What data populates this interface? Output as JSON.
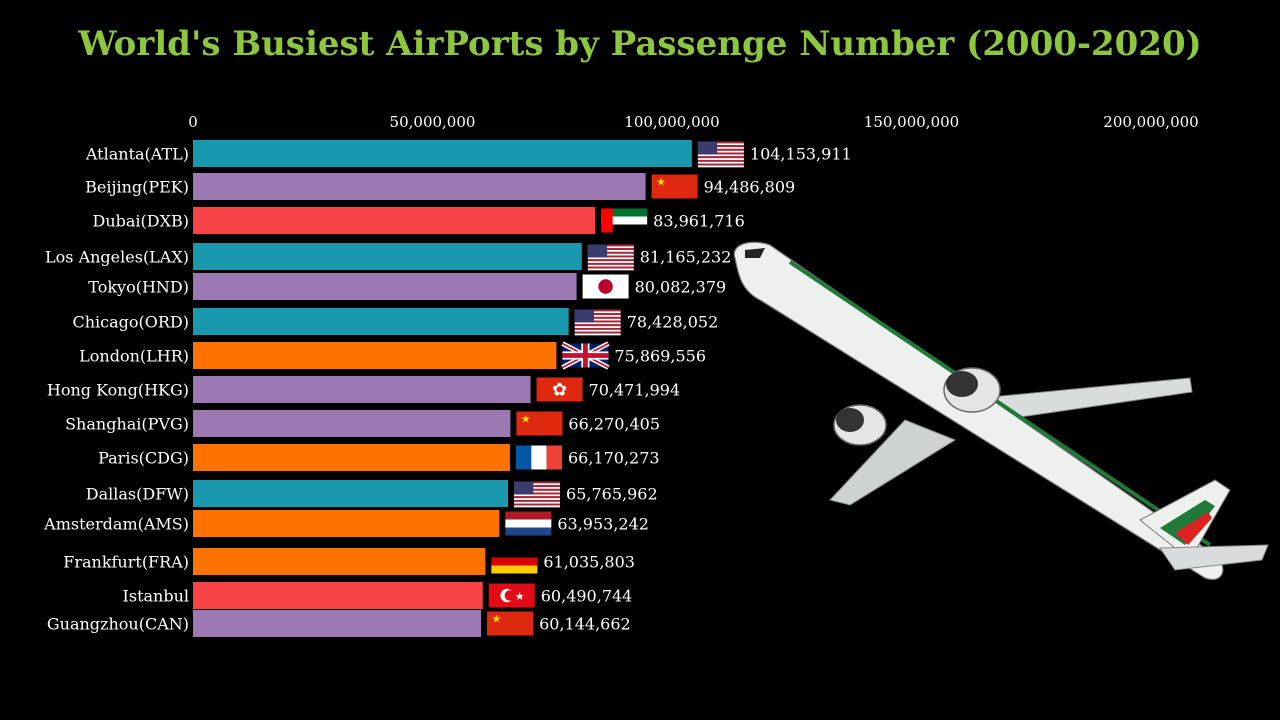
{
  "chart_data": {
    "type": "bar",
    "orientation": "horizontal",
    "title": "World's Busiest AirPorts by Passenge Number (2000-2020)",
    "x_ticks": [
      "0",
      "50,000,000",
      "100,000,000",
      "150,000,000",
      "200,000,000"
    ],
    "xlim": [
      0,
      200000000
    ],
    "categories": [
      "Atlanta(ATL)",
      "Beijing(PEK)",
      "Dubai(DXB)",
      "Los Angeles(LAX)",
      "Tokyo(HND)",
      "Chicago(ORD)",
      "London(LHR)",
      "Hong Kong(HKG)",
      "Shanghai(PVG)",
      "Paris(CDG)",
      "Dallas(DFW)",
      "Amsterdam(AMS)",
      "Frankfurt(FRA)",
      "Istanbul",
      "Guangzhou(CAN)"
    ],
    "values": [
      104153911,
      94486809,
      83961716,
      81165232,
      80082379,
      78428052,
      75869556,
      70471994,
      66270405,
      66170273,
      65765962,
      63953242,
      61035803,
      60490744,
      60144662
    ],
    "value_labels": [
      "104,153,911",
      "94,486,809",
      "83,961,716",
      "81,165,232",
      "80,082,379",
      "78,428,052",
      "75,869,556",
      "70,471,994",
      "66,270,405",
      "66,170,273",
      "65,765,962",
      "63,953,242",
      "61,035,803",
      "60,490,744",
      "60,144,662"
    ],
    "flags": [
      "usa-flag-icon",
      "china-flag-icon",
      "uae-flag-icon",
      "usa-flag-icon",
      "japan-flag-icon",
      "usa-flag-icon",
      "uk-flag-icon",
      "hong-kong-flag-icon",
      "china-flag-icon",
      "france-flag-icon",
      "usa-flag-icon",
      "netherlands-flag-icon",
      "germany-flag-icon",
      "turkey-flag-icon",
      "china-flag-icon"
    ],
    "region_colors": {
      "north_america": "#1a98ad",
      "east_asia": "#9b78b2",
      "middle_east": "#f74346",
      "europe": "#ff7200"
    },
    "bar_colors": [
      "#1a98ad",
      "#9b78b2",
      "#f74346",
      "#1a98ad",
      "#9b78b2",
      "#1a98ad",
      "#ff7200",
      "#9b78b2",
      "#9b78b2",
      "#ff7200",
      "#1a98ad",
      "#ff7200",
      "#ff7200",
      "#f74346",
      "#9b78b2"
    ]
  },
  "decoration": {
    "illustration": "airplane-illustration"
  }
}
